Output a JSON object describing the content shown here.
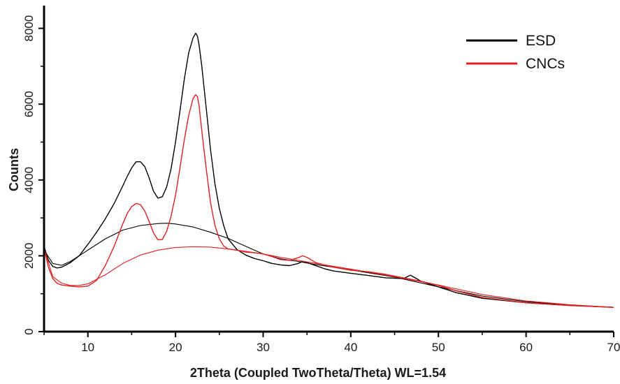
{
  "chart_data": {
    "type": "line",
    "xlabel": "2Theta (Coupled TwoTheta/Theta) WL=1.54",
    "ylabel": "Counts",
    "xlim": [
      5,
      70
    ],
    "ylim": [
      0,
      8600
    ],
    "xticks": [
      10,
      20,
      30,
      40,
      50,
      60,
      70
    ],
    "yticks": [
      0,
      2000,
      4000,
      6000,
      8000
    ],
    "grid": false,
    "legend_position": "top-right",
    "series": [
      {
        "name": "ESD",
        "color": "#000000",
        "x": [
          5,
          5.5,
          6,
          6.5,
          7,
          8,
          9,
          10,
          11,
          12,
          13,
          14,
          14.5,
          15,
          15.5,
          16,
          16.5,
          17,
          17.5,
          18,
          18.5,
          19,
          19.5,
          20,
          20.5,
          21,
          21.5,
          22,
          22.3,
          22.5,
          22.7,
          23,
          23.5,
          24,
          24.5,
          25,
          25.5,
          26,
          27,
          28,
          29,
          30,
          31,
          32,
          33,
          34,
          34.5,
          35,
          36,
          37,
          38,
          40,
          42,
          44,
          46,
          46.8,
          47.5,
          48,
          50,
          52,
          55,
          60,
          65,
          70
        ],
        "y": [
          2250,
          1880,
          1720,
          1680,
          1700,
          1820,
          2000,
          2300,
          2620,
          2980,
          3380,
          3850,
          4100,
          4320,
          4480,
          4480,
          4350,
          4050,
          3700,
          3520,
          3560,
          3820,
          4300,
          5000,
          5800,
          6650,
          7350,
          7750,
          7870,
          7800,
          7550,
          7000,
          5900,
          4800,
          3900,
          3250,
          2800,
          2450,
          2170,
          2020,
          1930,
          1870,
          1800,
          1760,
          1740,
          1800,
          1850,
          1820,
          1740,
          1660,
          1600,
          1540,
          1480,
          1420,
          1400,
          1490,
          1400,
          1330,
          1180,
          1030,
          880,
          760,
          690,
          640
        ]
      },
      {
        "name": "ESD baseline",
        "color": "#000000",
        "x": [
          5,
          6,
          7,
          8,
          10,
          12,
          14,
          16,
          18,
          19,
          20,
          22,
          24,
          26,
          28,
          30,
          32,
          34,
          36,
          40,
          45,
          50,
          55,
          60,
          65,
          70
        ],
        "y": [
          2150,
          1800,
          1750,
          1850,
          2150,
          2450,
          2680,
          2800,
          2850,
          2860,
          2840,
          2760,
          2620,
          2460,
          2250,
          2050,
          1920,
          1850,
          1770,
          1630,
          1440,
          1180,
          940,
          790,
          700,
          640
        ]
      },
      {
        "name": "CNCs",
        "color": "#e02020",
        "x": [
          5,
          5.5,
          6,
          6.5,
          7,
          8,
          9,
          10,
          11,
          12,
          13,
          14,
          14.5,
          15,
          15.5,
          16,
          16.5,
          17,
          17.5,
          18,
          18.5,
          19,
          19.5,
          20,
          20.5,
          21,
          21.5,
          22,
          22.3,
          22.5,
          22.7,
          23,
          23.5,
          24,
          24.5,
          25,
          25.5,
          26,
          27,
          28,
          29,
          30,
          31,
          32,
          33,
          34,
          34.5,
          35,
          36,
          38,
          40,
          42,
          44,
          46,
          48,
          50,
          52,
          55,
          60,
          65,
          70
        ],
        "y": [
          2200,
          1700,
          1400,
          1270,
          1230,
          1200,
          1180,
          1200,
          1350,
          1750,
          2250,
          2850,
          3120,
          3300,
          3380,
          3350,
          3180,
          2900,
          2600,
          2420,
          2430,
          2650,
          3050,
          3600,
          4300,
          5050,
          5700,
          6150,
          6250,
          6200,
          5950,
          5300,
          4300,
          3400,
          2800,
          2450,
          2260,
          2180,
          2150,
          2100,
          2080,
          2050,
          1980,
          1900,
          1880,
          1950,
          2000,
          1960,
          1820,
          1700,
          1620,
          1580,
          1510,
          1420,
          1330,
          1220,
          1080,
          900,
          760,
          690,
          640
        ]
      },
      {
        "name": "CNCs baseline",
        "color": "#e02020",
        "x": [
          5,
          6,
          7,
          8,
          9,
          10,
          12,
          14,
          16,
          18,
          20,
          22,
          24,
          26,
          28,
          30,
          32,
          34,
          36,
          40,
          45,
          50,
          55,
          60,
          65,
          70
        ],
        "y": [
          2200,
          1450,
          1280,
          1220,
          1220,
          1260,
          1500,
          1800,
          2020,
          2150,
          2220,
          2240,
          2230,
          2180,
          2120,
          2050,
          1960,
          1880,
          1800,
          1650,
          1450,
          1230,
          980,
          810,
          710,
          640
        ]
      }
    ],
    "legend": [
      {
        "label": "ESD",
        "color": "#000000"
      },
      {
        "label": "CNCs",
        "color": "#e02020"
      }
    ]
  }
}
